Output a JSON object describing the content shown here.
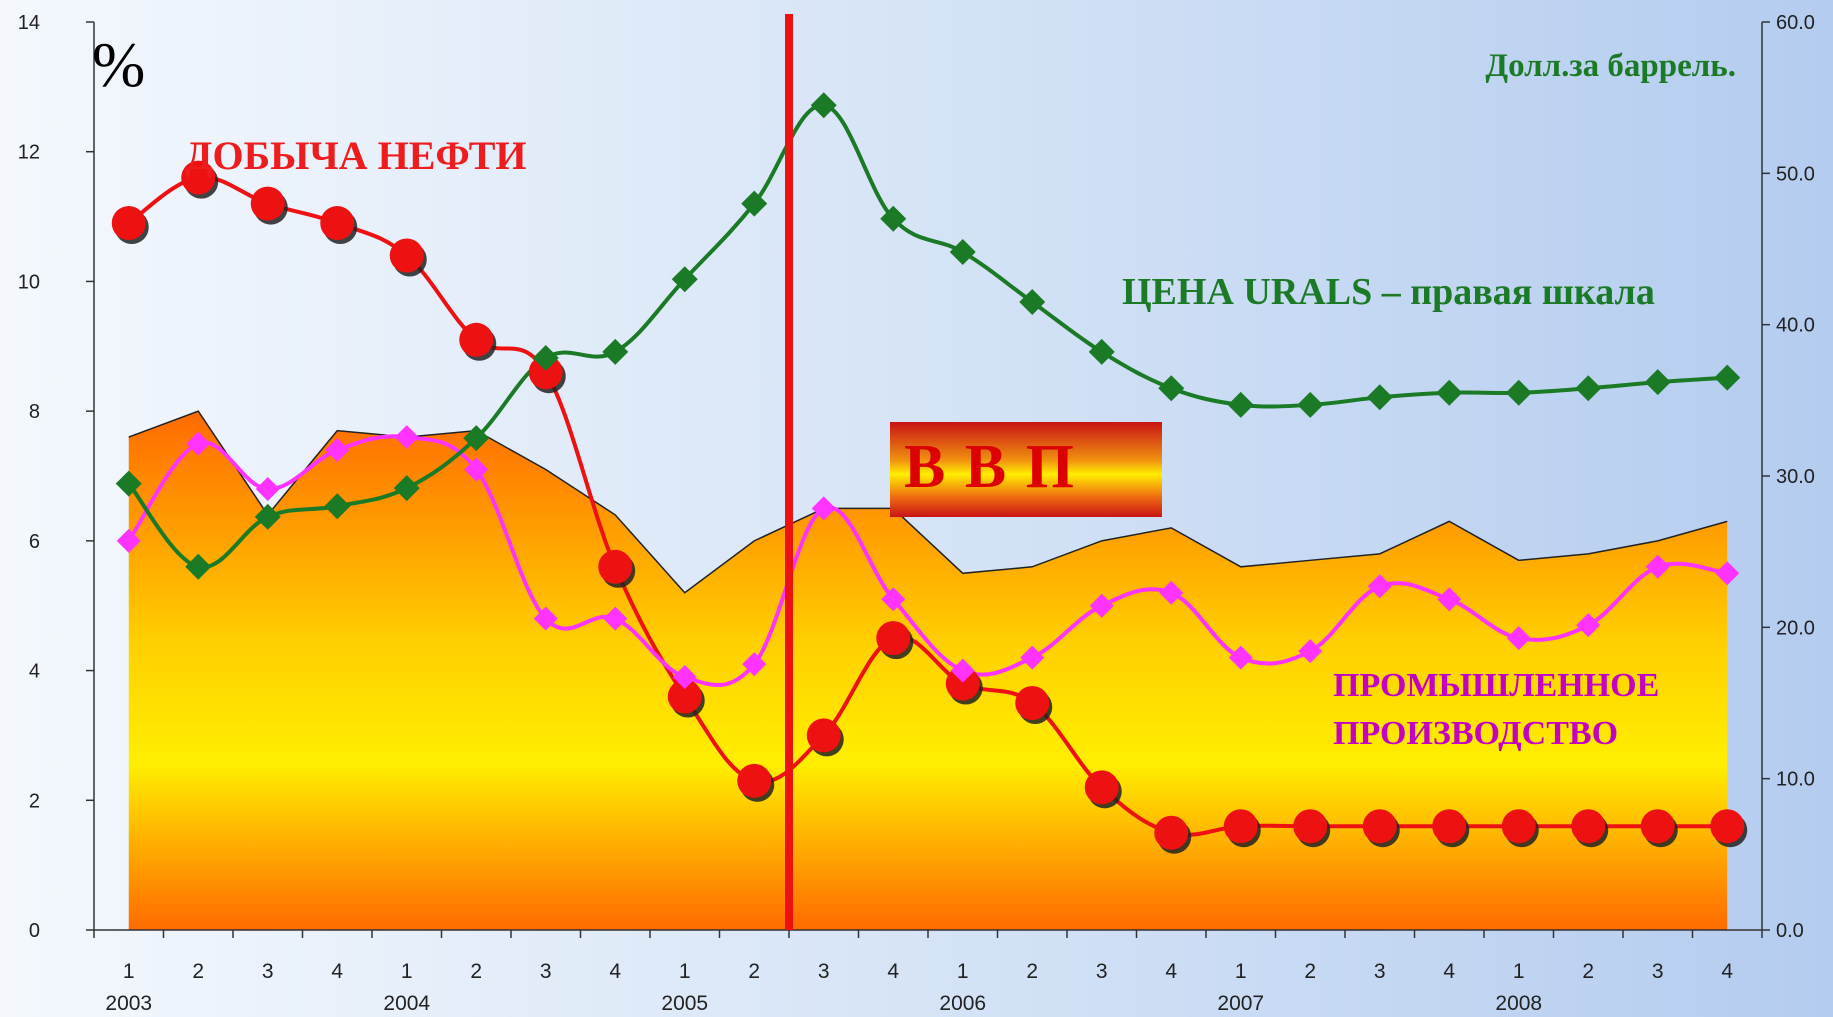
{
  "chart_data": {
    "type": "line",
    "categories": [
      "1",
      "2",
      "3",
      "4",
      "1",
      "2",
      "3",
      "4",
      "1",
      "2",
      "3",
      "4",
      "1",
      "2",
      "3",
      "4",
      "1",
      "2",
      "3",
      "4",
      "1",
      "2",
      "3",
      "4"
    ],
    "years": [
      "2003",
      "2004",
      "2005",
      "2006",
      "2007",
      "2008"
    ],
    "y_left": {
      "ticks": [
        "0",
        "2",
        "4",
        "6",
        "8",
        "10",
        "12",
        "14"
      ],
      "range": [
        0,
        14
      ],
      "unit_label": "%"
    },
    "y_right": {
      "ticks": [
        "0.0",
        "10.0",
        "20.0",
        "30.0",
        "40.0",
        "50.0",
        "60.0"
      ],
      "range": [
        0,
        60
      ],
      "unit_label": "Долл.за баррель."
    },
    "series": [
      {
        "name": "В В П",
        "type": "area",
        "axis": "left",
        "values": [
          7.6,
          8.0,
          6.4,
          7.7,
          7.6,
          7.7,
          7.1,
          6.4,
          5.2,
          6.0,
          6.5,
          6.5,
          5.5,
          5.6,
          6.0,
          6.2,
          5.6,
          5.7,
          5.8,
          6.3,
          5.7,
          5.8,
          6.0,
          6.3
        ],
        "color": "#ff9900"
      },
      {
        "name": "ДОБЫЧА НЕФТИ",
        "type": "line",
        "axis": "left",
        "values": [
          10.9,
          11.6,
          11.2,
          10.9,
          10.4,
          9.1,
          8.6,
          5.6,
          3.6,
          2.3,
          3.0,
          4.5,
          3.8,
          3.5,
          2.2,
          1.5,
          1.6,
          1.6,
          1.6,
          1.6,
          1.6,
          1.6,
          1.6,
          1.6
        ],
        "color": "#ee1111",
        "marker": "circle"
      },
      {
        "name": "ПРОМЫШЛЕННОЕ ПРОИЗВОДСТВО",
        "type": "line",
        "axis": "left",
        "values": [
          6.0,
          7.5,
          6.8,
          7.4,
          7.6,
          7.1,
          4.8,
          4.8,
          3.9,
          4.1,
          6.5,
          5.1,
          4.0,
          4.2,
          5.0,
          5.2,
          4.2,
          4.3,
          5.3,
          5.1,
          4.5,
          4.7,
          5.6,
          5.5
        ],
        "color": "#ff33ff",
        "marker": "diamond"
      },
      {
        "name": "ЦЕНА URALS – правая шкала",
        "type": "line",
        "axis": "right",
        "values": [
          29.5,
          24.0,
          27.3,
          28.0,
          29.2,
          32.5,
          37.8,
          38.2,
          43.0,
          48.0,
          54.5,
          47.0,
          44.8,
          41.5,
          38.2,
          35.8,
          34.7,
          34.7,
          35.2,
          35.5,
          35.5,
          35.8,
          36.2,
          36.5
        ],
        "color": "#1a7a25",
        "marker": "diamond"
      }
    ],
    "divider_after_index": 9.5,
    "divider_color": "#ee1111"
  },
  "annotations": {
    "percent": "%",
    "oil_label": "ДОБЫЧА НЕФТИ",
    "price_label": "ЦЕНА URALS – правая шкала",
    "unit_label": "Долл.за баррель.",
    "industry_line1": "ПРОМЫШЛЕННОЕ",
    "industry_line2": "ПРОИЗВОДСТВО",
    "gdp_label": "В В П"
  }
}
